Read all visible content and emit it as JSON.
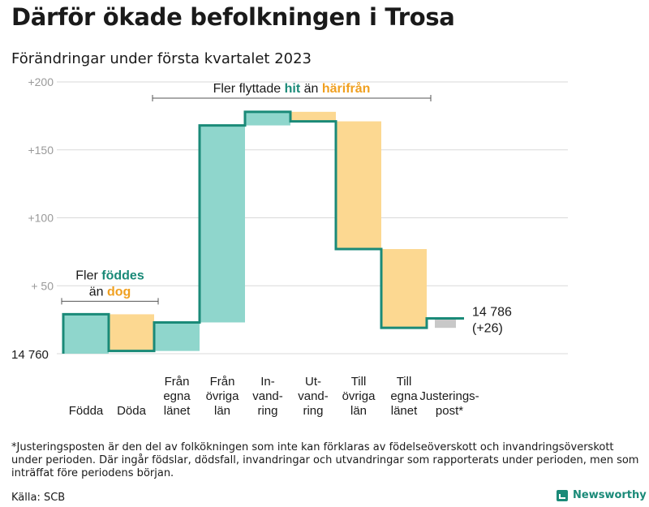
{
  "title": "Därför ökade befolkningen i Trosa",
  "subtitle": "Förändringar under första kvartalet 2023",
  "footnote": "*Justeringsposten är den del av folkökningen som inte kan förklaras av födelseöverskott och invandringsöverskott under perioden. Där ingår födslar, dödsfall, invandringar och utvandringar som rapporterats under perioden, men som inträffat före periodens början.",
  "source": "Källa: SCB",
  "brand": {
    "name": "Newsworthy",
    "icon": "newsworthy-logo-icon"
  },
  "colors": {
    "positive": "#8fd6cc",
    "negative": "#fcd891",
    "adjustment": "#c8c8c8",
    "line": "#1a8a78",
    "orange_text": "#f0a020",
    "grid": "#d9d9d9",
    "tick": "#9a9a9a"
  },
  "chart_data": {
    "type": "waterfall",
    "start_label": "14 760",
    "end_label": [
      "14 786",
      "(+26)"
    ],
    "y_ticks": [
      "+200",
      "+150",
      "+100",
      "+ 50"
    ],
    "ylim": [
      0,
      200
    ],
    "y_tick_values": [
      200,
      150,
      100,
      50
    ],
    "steps": [
      {
        "label": [
          "Födda"
        ],
        "value": 29
      },
      {
        "label": [
          "Döda"
        ],
        "value": -27
      },
      {
        "label": [
          "Från",
          "egna",
          "länet"
        ],
        "value": 21
      },
      {
        "label": [
          "Från",
          "övriga",
          "län"
        ],
        "value": 145
      },
      {
        "label": [
          "In-",
          "vand-",
          "ring"
        ],
        "value": 10
      },
      {
        "label": [
          "Ut-",
          "vand-",
          "ring"
        ],
        "value": -7
      },
      {
        "label": [
          "Till",
          "övriga",
          "län"
        ],
        "value": -94
      },
      {
        "label": [
          "Till",
          "egna",
          "länet"
        ],
        "value": -58
      },
      {
        "label": [
          "Justerings-",
          "post*"
        ],
        "value": 7
      }
    ],
    "annotations": [
      {
        "lines": [
          [
            {
              "text": "Fler ",
              "tone": "plain"
            },
            {
              "text": "föddes",
              "tone": "positive"
            }
          ],
          [
            {
              "text": "än ",
              "tone": "plain"
            },
            {
              "text": "dog",
              "tone": "negative"
            }
          ]
        ],
        "bracket_steps": [
          0,
          1
        ]
      },
      {
        "lines": [
          [
            {
              "text": "Fler flyttade ",
              "tone": "plain"
            },
            {
              "text": "hit",
              "tone": "positive"
            },
            {
              "text": " än ",
              "tone": "plain"
            },
            {
              "text": "härifrån",
              "tone": "negative"
            }
          ]
        ],
        "bracket_steps": [
          2,
          7
        ]
      }
    ]
  }
}
